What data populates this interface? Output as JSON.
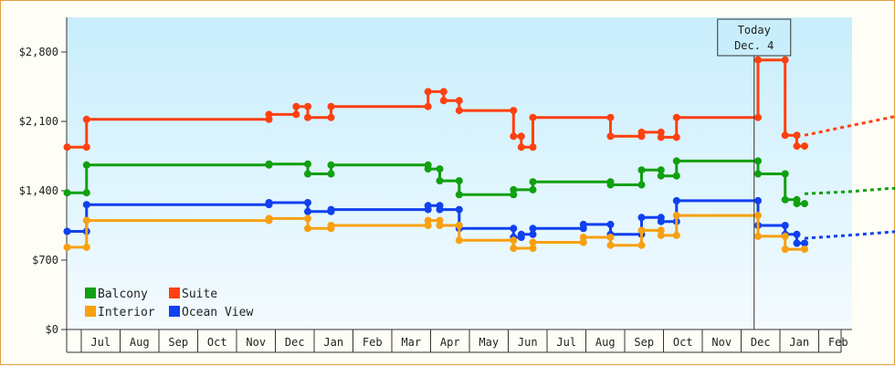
{
  "chart_data": {
    "type": "line",
    "title": "",
    "xlabel": "",
    "ylabel": "",
    "ylim": [
      0,
      3150
    ],
    "y_ticks": [
      0,
      700,
      1400,
      2100,
      2800
    ],
    "y_tick_labels": [
      "$0",
      "$700",
      "$1,400",
      "$2,100",
      "$2,800"
    ],
    "x_tick_labels": [
      "Jul",
      "Aug",
      "Sep",
      "Oct",
      "Nov",
      "Dec",
      "Jan",
      "Feb",
      "Mar",
      "Apr",
      "May",
      "Jun",
      "Jul",
      "Aug",
      "Sep",
      "Oct",
      "Nov",
      "Dec",
      "Jan",
      "Feb"
    ],
    "today_marker": {
      "line1": "Today",
      "line2": "Dec. 4",
      "x": 17.1
    },
    "legend_placement": "bottom-left",
    "grid": false,
    "series": [
      {
        "name": "Suite",
        "color": "#ff4010",
        "points": [
          [
            -0.6,
            1840
          ],
          [
            -0.1,
            1840
          ],
          [
            -0.1,
            2120
          ],
          [
            4.6,
            2120
          ],
          [
            4.6,
            2170
          ],
          [
            5.3,
            2170
          ],
          [
            5.3,
            2250
          ],
          [
            5.6,
            2250
          ],
          [
            5.6,
            2140
          ],
          [
            6.2,
            2140
          ],
          [
            6.2,
            2250
          ],
          [
            8.7,
            2250
          ],
          [
            8.7,
            2400
          ],
          [
            9.1,
            2400
          ],
          [
            9.1,
            2310
          ],
          [
            9.5,
            2310
          ],
          [
            9.5,
            2210
          ],
          [
            10.9,
            2210
          ],
          [
            10.9,
            1950
          ],
          [
            11.1,
            1950
          ],
          [
            11.1,
            1840
          ],
          [
            11.4,
            1840
          ],
          [
            11.4,
            2140
          ],
          [
            13.4,
            2140
          ],
          [
            13.4,
            1950
          ],
          [
            14.2,
            1950
          ],
          [
            14.2,
            1990
          ],
          [
            14.7,
            1990
          ],
          [
            14.7,
            1940
          ],
          [
            15.1,
            1940
          ],
          [
            15.1,
            2140
          ],
          [
            17.2,
            2140
          ],
          [
            17.2,
            2720
          ],
          [
            17.9,
            2720
          ],
          [
            17.9,
            1960
          ],
          [
            18.2,
            1960
          ],
          [
            18.2,
            1850
          ],
          [
            18.4,
            1850
          ]
        ],
        "forecast": [
          [
            18.4,
            1960
          ],
          [
            19.5,
            2050
          ],
          [
            20.5,
            2130
          ],
          [
            21.5,
            2220
          ],
          [
            22.2,
            2260
          ]
        ]
      },
      {
        "name": "Balcony",
        "color": "#10a010",
        "points": [
          [
            -0.6,
            1380
          ],
          [
            -0.1,
            1380
          ],
          [
            -0.1,
            1660
          ],
          [
            4.6,
            1660
          ],
          [
            4.6,
            1670
          ],
          [
            5.6,
            1670
          ],
          [
            5.6,
            1570
          ],
          [
            6.2,
            1570
          ],
          [
            6.2,
            1660
          ],
          [
            8.7,
            1660
          ],
          [
            8.7,
            1620
          ],
          [
            9.0,
            1620
          ],
          [
            9.0,
            1500
          ],
          [
            9.5,
            1500
          ],
          [
            9.5,
            1360
          ],
          [
            10.9,
            1360
          ],
          [
            10.9,
            1410
          ],
          [
            11.4,
            1410
          ],
          [
            11.4,
            1490
          ],
          [
            13.4,
            1490
          ],
          [
            13.4,
            1460
          ],
          [
            14.2,
            1460
          ],
          [
            14.2,
            1610
          ],
          [
            14.7,
            1610
          ],
          [
            14.7,
            1550
          ],
          [
            15.1,
            1550
          ],
          [
            15.1,
            1700
          ],
          [
            17.2,
            1700
          ],
          [
            17.2,
            1570
          ],
          [
            17.9,
            1570
          ],
          [
            17.9,
            1310
          ],
          [
            18.2,
            1310
          ],
          [
            18.2,
            1270
          ],
          [
            18.4,
            1270
          ]
        ],
        "forecast": [
          [
            18.4,
            1370
          ],
          [
            19.5,
            1390
          ],
          [
            20.5,
            1420
          ],
          [
            21.5,
            1440
          ],
          [
            22.2,
            1450
          ]
        ]
      },
      {
        "name": "Ocean View",
        "color": "#1040f0",
        "points": [
          [
            -0.6,
            990
          ],
          [
            -0.1,
            990
          ],
          [
            -0.1,
            1260
          ],
          [
            4.6,
            1260
          ],
          [
            4.6,
            1280
          ],
          [
            5.6,
            1280
          ],
          [
            5.6,
            1190
          ],
          [
            6.2,
            1190
          ],
          [
            6.2,
            1210
          ],
          [
            8.7,
            1210
          ],
          [
            8.7,
            1250
          ],
          [
            9.0,
            1250
          ],
          [
            9.0,
            1210
          ],
          [
            9.5,
            1210
          ],
          [
            9.5,
            1020
          ],
          [
            10.9,
            1020
          ],
          [
            10.9,
            930
          ],
          [
            11.1,
            930
          ],
          [
            11.1,
            960
          ],
          [
            11.4,
            960
          ],
          [
            11.4,
            1020
          ],
          [
            12.7,
            1020
          ],
          [
            12.7,
            1060
          ],
          [
            13.4,
            1060
          ],
          [
            13.4,
            960
          ],
          [
            14.2,
            960
          ],
          [
            14.2,
            1130
          ],
          [
            14.7,
            1130
          ],
          [
            14.7,
            1090
          ],
          [
            15.1,
            1090
          ],
          [
            15.1,
            1300
          ],
          [
            17.2,
            1300
          ],
          [
            17.2,
            1050
          ],
          [
            17.9,
            1050
          ],
          [
            17.9,
            960
          ],
          [
            18.2,
            960
          ],
          [
            18.2,
            870
          ],
          [
            18.4,
            870
          ]
        ],
        "forecast": [
          [
            18.4,
            920
          ],
          [
            19.5,
            950
          ],
          [
            20.5,
            980
          ],
          [
            21.5,
            1010
          ],
          [
            22.2,
            1030
          ]
        ]
      },
      {
        "name": "Interior",
        "color": "#f8a010",
        "points": [
          [
            -0.6,
            830
          ],
          [
            -0.1,
            830
          ],
          [
            -0.1,
            1100
          ],
          [
            4.6,
            1100
          ],
          [
            4.6,
            1120
          ],
          [
            5.6,
            1120
          ],
          [
            5.6,
            1020
          ],
          [
            6.2,
            1020
          ],
          [
            6.2,
            1050
          ],
          [
            8.7,
            1050
          ],
          [
            8.7,
            1100
          ],
          [
            9.0,
            1100
          ],
          [
            9.0,
            1050
          ],
          [
            9.5,
            1050
          ],
          [
            9.5,
            900
          ],
          [
            10.9,
            900
          ],
          [
            10.9,
            820
          ],
          [
            11.4,
            820
          ],
          [
            11.4,
            880
          ],
          [
            12.7,
            880
          ],
          [
            12.7,
            930
          ],
          [
            13.4,
            930
          ],
          [
            13.4,
            850
          ],
          [
            14.2,
            850
          ],
          [
            14.2,
            1000
          ],
          [
            14.7,
            1000
          ],
          [
            14.7,
            950
          ],
          [
            15.1,
            950
          ],
          [
            15.1,
            1150
          ],
          [
            17.2,
            1150
          ],
          [
            17.2,
            940
          ],
          [
            17.9,
            940
          ],
          [
            17.9,
            810
          ],
          [
            18.4,
            810
          ]
        ]
      }
    ],
    "legend": [
      {
        "name": "Balcony",
        "color": "#10a010"
      },
      {
        "name": "Suite",
        "color": "#ff4010"
      },
      {
        "name": "Interior",
        "color": "#f8a010"
      },
      {
        "name": "Ocean View",
        "color": "#1040f0"
      }
    ]
  }
}
